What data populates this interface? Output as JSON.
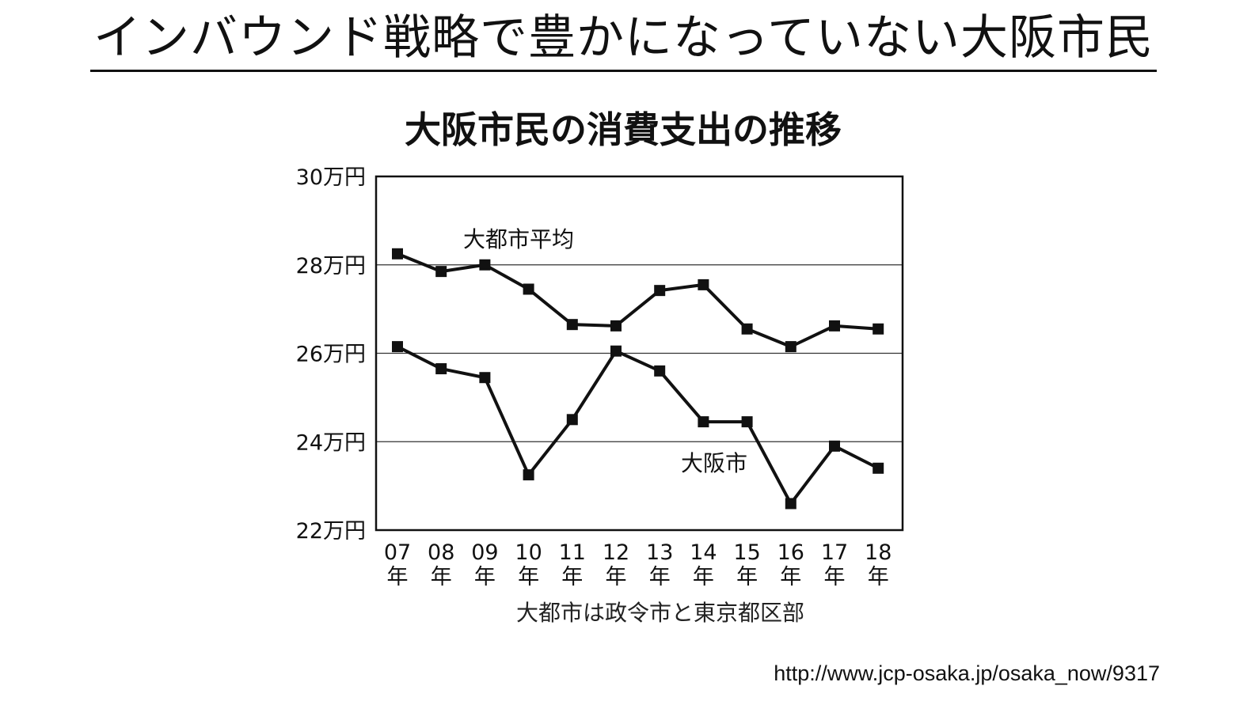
{
  "slide": {
    "title": "インバウンド戦略で豊かになっていない大阪市民",
    "source": "http://www.jcp-osaka.jp/osaka_now/9317"
  },
  "chart_data": {
    "type": "line",
    "title": "大阪市民の消費支出の推移",
    "categories": [
      "07",
      "08",
      "09",
      "10",
      "11",
      "12",
      "13",
      "14",
      "15",
      "16",
      "17",
      "18"
    ],
    "category_suffix": "年",
    "yticks": [
      "22万円",
      "24万円",
      "26万円",
      "28万円",
      "30万円"
    ],
    "ylim": [
      22,
      30
    ],
    "y_unit": "万円",
    "grid": true,
    "series": [
      {
        "name": "大都市平均",
        "values": [
          28.25,
          27.85,
          28.0,
          27.45,
          26.65,
          26.62,
          27.42,
          27.55,
          26.55,
          26.15,
          26.62,
          26.55
        ]
      },
      {
        "name": "大阪市",
        "values": [
          26.15,
          25.65,
          25.45,
          23.25,
          24.5,
          26.05,
          25.6,
          24.45,
          24.45,
          22.6,
          23.9,
          23.4
        ]
      }
    ],
    "note": "大都市は政令市と東京都区部",
    "marker_color": "#111111",
    "line_color": "#111111"
  }
}
